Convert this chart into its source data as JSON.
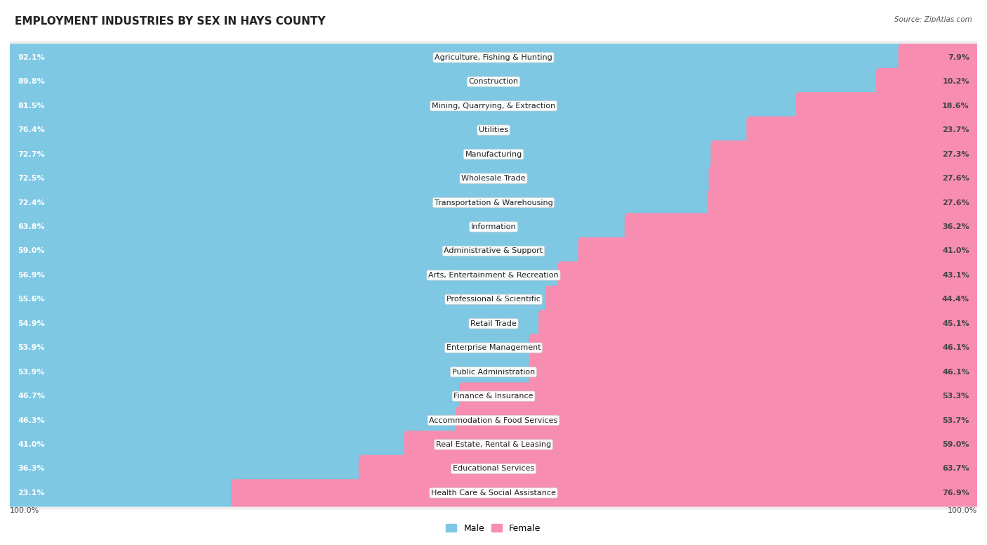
{
  "title": "EMPLOYMENT INDUSTRIES BY SEX IN HAYS COUNTY",
  "source": "Source: ZipAtlas.com",
  "categories": [
    "Agriculture, Fishing & Hunting",
    "Construction",
    "Mining, Quarrying, & Extraction",
    "Utilities",
    "Manufacturing",
    "Wholesale Trade",
    "Transportation & Warehousing",
    "Information",
    "Administrative & Support",
    "Arts, Entertainment & Recreation",
    "Professional & Scientific",
    "Retail Trade",
    "Enterprise Management",
    "Public Administration",
    "Finance & Insurance",
    "Accommodation & Food Services",
    "Real Estate, Rental & Leasing",
    "Educational Services",
    "Health Care & Social Assistance"
  ],
  "male_pct": [
    92.1,
    89.8,
    81.5,
    76.4,
    72.7,
    72.5,
    72.4,
    63.8,
    59.0,
    56.9,
    55.6,
    54.9,
    53.9,
    53.9,
    46.7,
    46.3,
    41.0,
    36.3,
    23.1
  ],
  "female_pct": [
    7.9,
    10.2,
    18.6,
    23.7,
    27.3,
    27.6,
    27.6,
    36.2,
    41.0,
    43.1,
    44.4,
    45.1,
    46.1,
    46.1,
    53.3,
    53.7,
    59.0,
    63.7,
    76.9
  ],
  "male_color": "#7ec8e3",
  "female_color": "#f78db0",
  "bg_color": "#ffffff",
  "row_bg_color": "#efefef",
  "title_fontsize": 11,
  "label_fontsize": 8,
  "category_fontsize": 8
}
